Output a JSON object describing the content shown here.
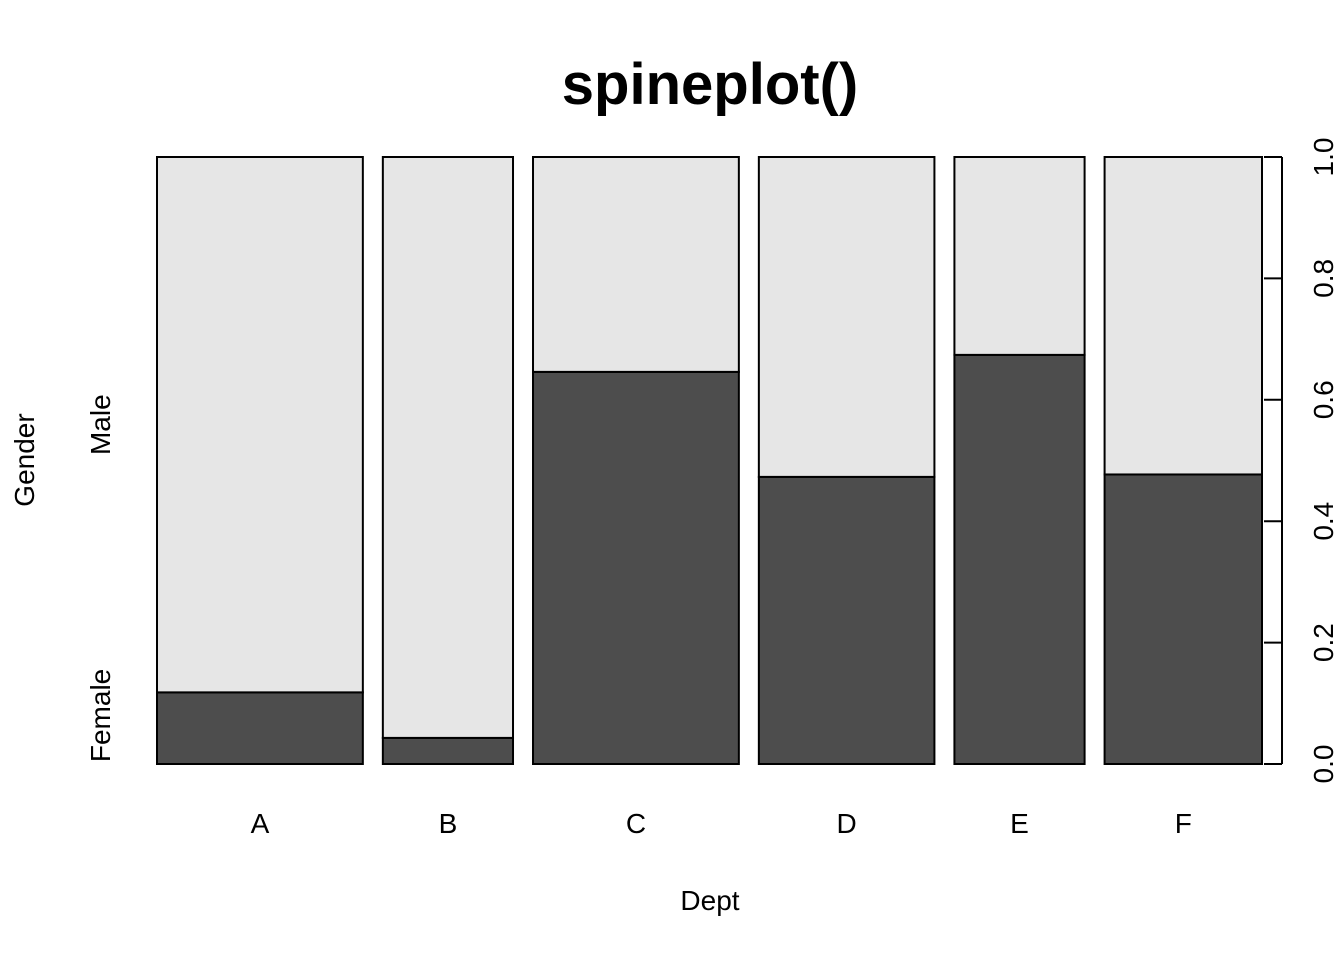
{
  "chart_data": {
    "type": "bar",
    "variant": "spineplot",
    "title": "spineplot()",
    "xlabel": "Dept",
    "ylabel": "Gender",
    "categories": [
      "A",
      "B",
      "C",
      "D",
      "E",
      "F"
    ],
    "category_share": [
      0.34,
      0.215,
      0.34,
      0.29,
      0.215,
      0.26
    ],
    "series": [
      {
        "name": "Female",
        "values": [
          0.118,
          0.043,
          0.646,
          0.473,
          0.674,
          0.477
        ],
        "color": "#4d4d4d"
      },
      {
        "name": "Male",
        "values": [
          0.882,
          0.957,
          0.354,
          0.527,
          0.326,
          0.523
        ],
        "color": "#e6e6e6"
      }
    ],
    "y_left_labels": [
      "Female",
      "Male"
    ],
    "y_right_ticks": [
      "0.0",
      "0.2",
      "0.4",
      "0.6",
      "0.8",
      "1.0"
    ],
    "ylim": [
      0,
      1
    ],
    "grid": false,
    "legend": "none"
  }
}
